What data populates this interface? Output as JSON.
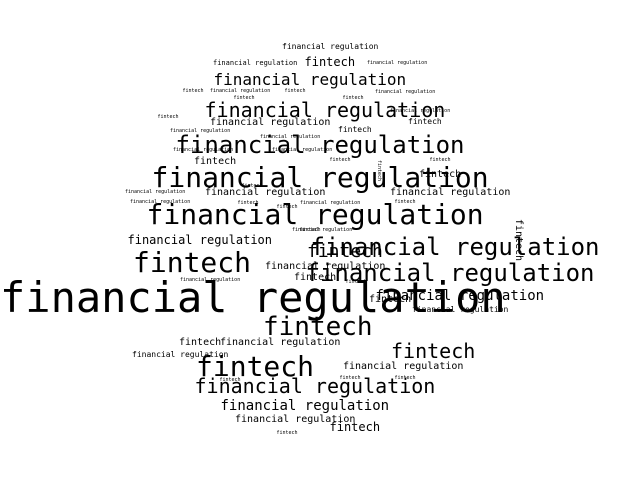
{
  "color": "#000000",
  "background": "#ffffff",
  "words": [
    "financial regulation",
    "financial regulation",
    "fintech",
    "financial regulation",
    "financial regulation",
    "fintech",
    "financial regulation",
    "fintech",
    "financial regulation",
    "financial regulation",
    "fintech",
    "fintech",
    "financial regulation",
    "fintech",
    "financial regulation",
    "fintech",
    "financial regulation",
    "financial regulation",
    "financial regulation",
    "fintech",
    "financial regulation",
    "financial regulation",
    "financial regulation",
    "financial regulation",
    "financial regulation",
    "financial regulation",
    "fintech",
    "fintech",
    "financial regulation",
    "fintech",
    "financial regulation",
    "fintech",
    "fintech",
    "fintech",
    "fintech",
    "fintech",
    "fintech",
    "financial regulation",
    "fintech",
    "financial regulation",
    "fintech",
    "fintech",
    "financial regulation",
    "fintech",
    "financial regulation",
    "financial regulation",
    "financial regulation",
    "fintech",
    "financial regulation",
    "fintech",
    "financial regulation",
    "fintech",
    "financial regulation",
    "financial regulation",
    "fintech",
    "fintech",
    "financial regulation",
    "fintech",
    "financial regulation",
    "fintech",
    "financial regulation",
    "financial regulation",
    "fintech",
    "fintech",
    "fintech",
    "financial regulation",
    "financial regulation",
    "fintech",
    "fintech"
  ]
}
